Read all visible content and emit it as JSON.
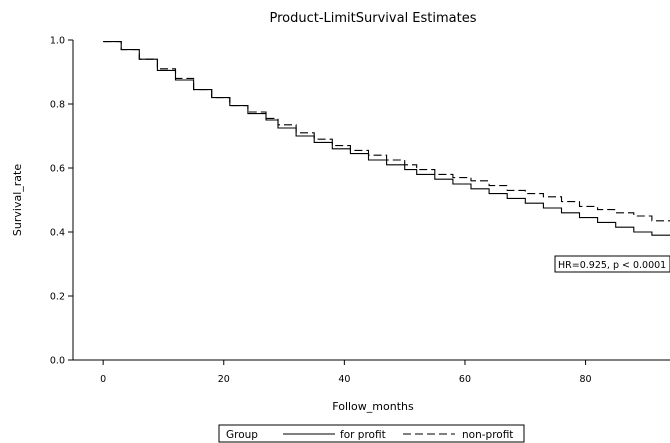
{
  "chart_data": {
    "type": "line",
    "title": "Product-LimitSurvival Estimates",
    "xlabel": "Follow_months",
    "ylabel": "Survival_rate",
    "xlim": [
      -5,
      94
    ],
    "ylim": [
      0,
      1.0
    ],
    "x_ticks": [
      0,
      20,
      40,
      60,
      80
    ],
    "y_ticks": [
      0.0,
      0.2,
      0.4,
      0.6,
      0.8,
      1.0
    ],
    "x_tick_labels": [
      "0",
      "20",
      "40",
      "60",
      "80"
    ],
    "y_tick_labels": [
      "0.0",
      "0.2",
      "0.4",
      "0.6",
      "0.8",
      "1.0"
    ],
    "line_style": "step",
    "legend": {
      "title": "Group",
      "placement": "bottom-center"
    },
    "annotation": "HR=0.925, p < 0.0001",
    "series": [
      {
        "name": "for profit",
        "style": "solid",
        "color": "#000000",
        "x": [
          0,
          3,
          6,
          9,
          12,
          15,
          18,
          21,
          24,
          27,
          29,
          32,
          35,
          38,
          41,
          44,
          47,
          50,
          52,
          55,
          58,
          61,
          64,
          67,
          70,
          73,
          76,
          79,
          82,
          85,
          88,
          91,
          94
        ],
        "y": [
          0.995,
          0.97,
          0.94,
          0.905,
          0.875,
          0.845,
          0.82,
          0.795,
          0.77,
          0.75,
          0.725,
          0.7,
          0.68,
          0.66,
          0.645,
          0.625,
          0.61,
          0.595,
          0.58,
          0.565,
          0.55,
          0.535,
          0.52,
          0.505,
          0.49,
          0.475,
          0.46,
          0.445,
          0.43,
          0.415,
          0.4,
          0.39,
          0.39
        ]
      },
      {
        "name": "non-profit",
        "style": "dashed",
        "color": "#000000",
        "x": [
          0,
          3,
          6,
          9,
          12,
          15,
          18,
          21,
          24,
          27,
          29,
          32,
          35,
          38,
          41,
          44,
          47,
          50,
          52,
          55,
          58,
          61,
          64,
          67,
          70,
          73,
          76,
          79,
          82,
          85,
          88,
          91,
          94
        ],
        "y": [
          0.995,
          0.97,
          0.94,
          0.91,
          0.88,
          0.845,
          0.82,
          0.795,
          0.775,
          0.755,
          0.735,
          0.71,
          0.69,
          0.67,
          0.655,
          0.64,
          0.625,
          0.61,
          0.595,
          0.58,
          0.57,
          0.56,
          0.545,
          0.53,
          0.52,
          0.51,
          0.495,
          0.48,
          0.47,
          0.46,
          0.45,
          0.435,
          0.435
        ]
      }
    ]
  }
}
